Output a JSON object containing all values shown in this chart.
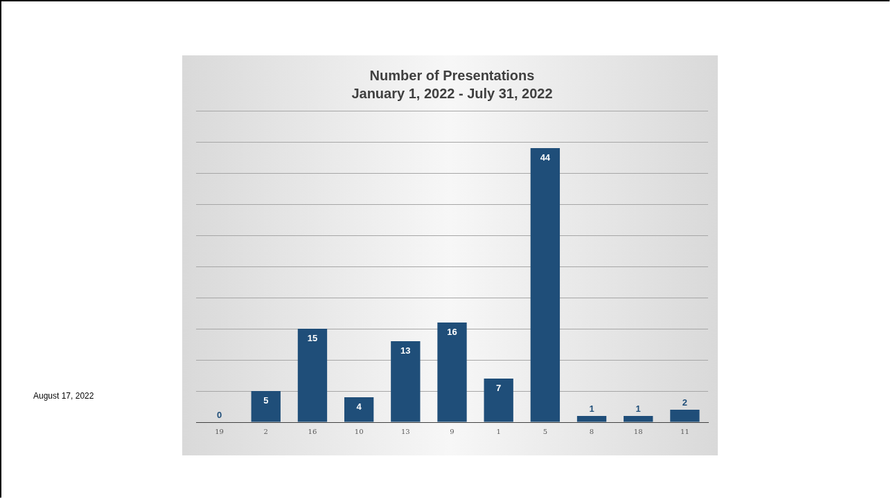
{
  "chart_data": {
    "type": "bar",
    "title": "Number of Presentations",
    "subtitle": "January 1, 2022 - July 31, 2022",
    "categories": [
      "19",
      "2",
      "16",
      "10",
      "13",
      "9",
      "1",
      "5",
      "8",
      "18",
      "11"
    ],
    "values": [
      0,
      5,
      15,
      4,
      13,
      16,
      7,
      44,
      1,
      1,
      2
    ],
    "color": "#1f4e79",
    "ylim": [
      0,
      50
    ],
    "yticks": [
      {
        "value": 0,
        "label": null
      },
      {
        "value": 5,
        "label": null
      },
      {
        "value": 10,
        "label": null
      },
      {
        "value": 15,
        "label": null
      },
      {
        "value": 20,
        "label": null
      },
      {
        "value": 25,
        "label": null
      },
      {
        "value": 30,
        "label": null
      },
      {
        "value": 35,
        "label": null
      },
      {
        "value": 40,
        "label": null
      },
      {
        "value": 45,
        "label": null
      },
      {
        "value": 50,
        "label": null
      }
    ],
    "tick_labels": "x",
    "grid": "y",
    "data_labels": true,
    "legend": false,
    "annotations": [
      "August 17, 2022"
    ]
  }
}
